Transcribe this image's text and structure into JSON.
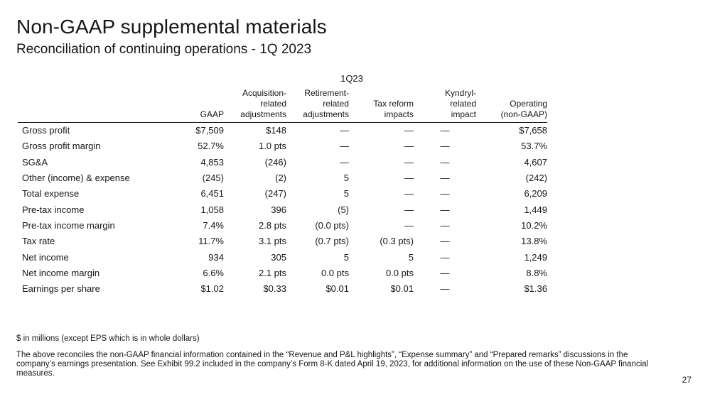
{
  "title": "Non-GAAP supplemental materials",
  "subtitle": "Reconciliation of continuing operations - 1Q 2023",
  "table": {
    "period": "1Q23",
    "columns": [
      "",
      "GAAP",
      "Acquisition-\nrelated\nadjustments",
      "Retirement-\nrelated\nadjustments",
      "Tax reform\nimpacts",
      "Kyndryl-\nrelated\nimpact",
      "Operating\n(non-GAAP)"
    ],
    "rows": [
      [
        "Gross profit",
        "$7,509",
        "$148",
        "—",
        "—",
        "—",
        "$7,658"
      ],
      [
        "Gross profit margin",
        "52.7%",
        "1.0 pts",
        "—",
        "—",
        "—",
        "53.7%"
      ],
      [
        "SG&A",
        "4,853",
        "(246)",
        "—",
        "—",
        "—",
        "4,607"
      ],
      [
        "Other (income) & expense",
        "(245)",
        "(2)",
        "5",
        "—",
        "—",
        "(242)"
      ],
      [
        "Total expense",
        "6,451",
        "(247)",
        "5",
        "—",
        "—",
        "6,209"
      ],
      [
        "Pre-tax income",
        "1,058",
        "396",
        "(5)",
        "—",
        "—",
        "1,449"
      ],
      [
        "Pre-tax income margin",
        "7.4%",
        "2.8 pts",
        "(0.0 pts)",
        "—",
        "—",
        "10.2%"
      ],
      [
        "Tax rate",
        "11.7%",
        "3.1 pts",
        "(0.7 pts)",
        "(0.3 pts)",
        "—",
        "13.8%"
      ],
      [
        "Net income",
        "934",
        "305",
        "5",
        "5",
        "—",
        "1,249"
      ],
      [
        "Net income margin",
        "6.6%",
        "2.1 pts",
        "0.0 pts",
        "0.0 pts",
        "—",
        "8.8%"
      ],
      [
        "Earnings per share",
        "$1.02",
        "$0.33",
        "$0.01",
        "$0.01",
        "—",
        "$1.36"
      ]
    ]
  },
  "notes": {
    "units": "$ in millions (except EPS which is in whole dollars)",
    "disclaimer": "The above reconciles the non-GAAP financial information contained in the “Revenue and P&L highlights”, “Expense summary” and “Prepared remarks” discussions in the company’s earnings presentation.  See Exhibit 99.2 included in the company’s Form 8-K dated April 19, 2023, for additional information on the use of these Non-GAAP financial measures."
  },
  "page_number": "27"
}
